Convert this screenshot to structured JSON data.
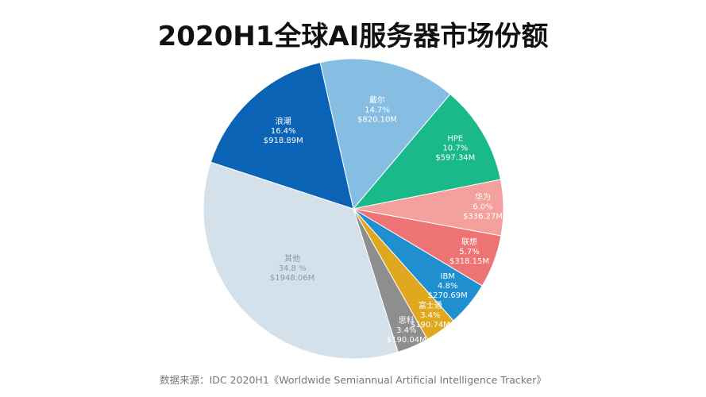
{
  "chart_data": {
    "type": "pie",
    "title": "2020H1全球AI服务器市场份额",
    "source": "数据来源：IDC 2020H1《Worldwide Semiannual Artificial Intelligence Tracker》",
    "slices": [
      {
        "label": "戴尔",
        "percent": "14.7%",
        "value": "$820.10M",
        "pct": 14.7,
        "color": "#85bde3",
        "text_color": "#ffffff"
      },
      {
        "label": "HPE",
        "percent": "10.7%",
        "value": "$597.34M",
        "pct": 10.7,
        "color": "#1ab98a",
        "text_color": "#ffffff"
      },
      {
        "label": "华为",
        "percent": "6.0%",
        "value": "$336.27M",
        "pct": 6.0,
        "color": "#f4a09c",
        "text_color": "#ffffff"
      },
      {
        "label": "联想",
        "percent": "5.7%",
        "value": "$318.15M",
        "pct": 5.7,
        "color": "#ee7374",
        "text_color": "#ffffff"
      },
      {
        "label": "IBM",
        "percent": "4.8%",
        "value": "$270.69M",
        "pct": 4.8,
        "color": "#1f8fcf",
        "text_color": "#ffffff"
      },
      {
        "label": "富士通",
        "percent": "3.4%",
        "value": "$190.74M",
        "pct": 3.4,
        "color": "#e0a81e",
        "text_color": "#ffffff"
      },
      {
        "label": "思科",
        "percent": "3.4%",
        "value": "$190.04M",
        "pct": 3.4,
        "color": "#8e8e8e",
        "text_color": "#ffffff"
      },
      {
        "label": "其他",
        "percent": "34.8 %",
        "value": "$1948.06M",
        "pct": 34.8,
        "color": "#d4e1eb",
        "text_color": "#8a9aa8"
      },
      {
        "label": "浪潮",
        "percent": "16.4%",
        "value": "$918.89M",
        "pct": 16.4,
        "color": "#0b63b5",
        "text_color": "#ffffff"
      }
    ]
  }
}
